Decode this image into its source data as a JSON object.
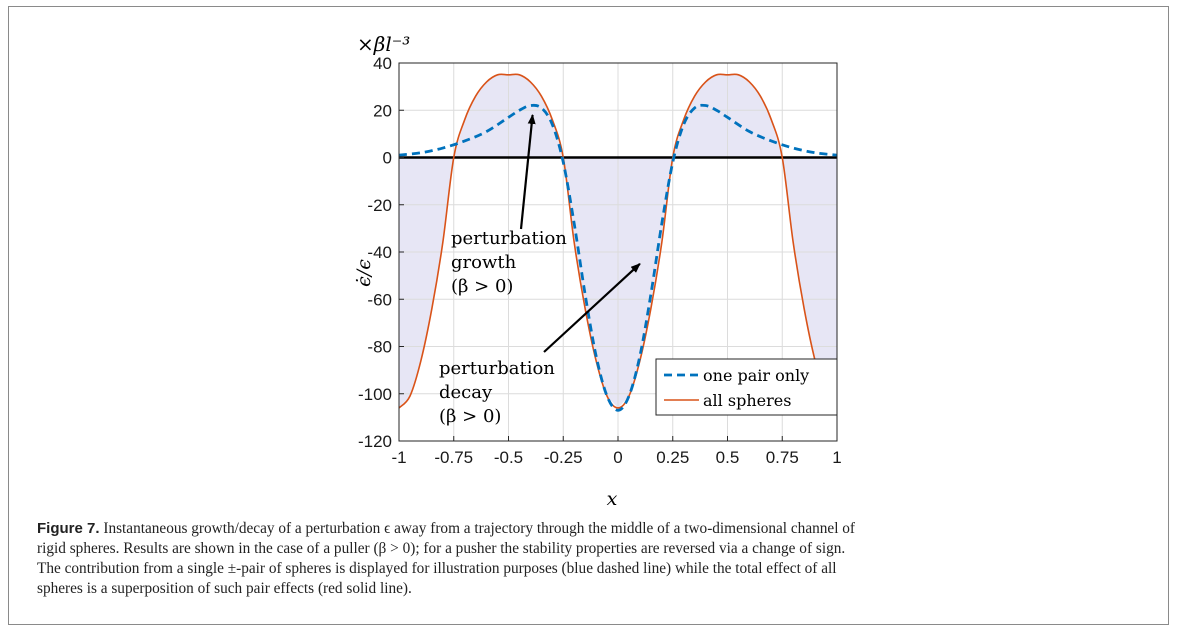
{
  "figure": {
    "label": "Figure 7.",
    "caption_lines": [
      "Instantaneous growth/decay of a perturbation ϵ away from a trajectory through the middle of a two-dimensional channel of",
      "rigid spheres. Results are shown in the case of a puller (β > 0); for a pusher the stability properties are reversed via a change of sign.",
      "The contribution from a single ±-pair of spheres is displayed for illustration purposes (blue dashed line) while the total effect of all",
      "spheres is a superposition of such pair effects (red solid line)."
    ]
  },
  "chart_data": {
    "type": "line",
    "xlabel": "x",
    "ylabel": "ϵ̇/ϵ",
    "y_multiplier": "×βl⁻³",
    "xlim": [
      -1,
      1
    ],
    "ylim": [
      -120,
      40
    ],
    "x_ticks": [
      -1,
      -0.75,
      -0.5,
      -0.25,
      0,
      0.25,
      0.5,
      0.75,
      1
    ],
    "x_tick_labels": [
      "-1",
      "-0.75",
      "-0.5",
      "-0.25",
      "0",
      "0.25",
      "0.5",
      "0.75",
      "1"
    ],
    "y_ticks": [
      40,
      20,
      0,
      -20,
      -40,
      -60,
      -80,
      -100,
      -120
    ],
    "y_tick_labels": [
      "40",
      "20",
      "0",
      "-20",
      "-40",
      "-60",
      "-80",
      "-100",
      "-120"
    ],
    "grid": true,
    "legend_position": "bottom-right",
    "series": [
      {
        "name": "one pair only",
        "style": "dashed",
        "color": "#0072BD",
        "x": [
          -1,
          -0.9,
          -0.8,
          -0.7,
          -0.6,
          -0.5,
          -0.45,
          -0.4,
          -0.35,
          -0.3,
          -0.25,
          -0.2,
          -0.15,
          -0.1,
          -0.05,
          0,
          0.05,
          0.1,
          0.15,
          0.2,
          0.25,
          0.3,
          0.35,
          0.4,
          0.45,
          0.5,
          0.6,
          0.7,
          0.8,
          0.9,
          1
        ],
        "y": [
          1,
          2,
          4,
          7,
          11,
          17,
          20,
          22,
          21,
          14,
          -2,
          -28,
          -58,
          -84,
          -101,
          -107,
          -101,
          -84,
          -58,
          -28,
          -2,
          14,
          21,
          22,
          20,
          17,
          11,
          7,
          4,
          2,
          1
        ]
      },
      {
        "name": "all spheres",
        "style": "solid",
        "color": "#D95319",
        "x": [
          -1,
          -0.95,
          -0.9,
          -0.85,
          -0.8,
          -0.75,
          -0.7,
          -0.65,
          -0.6,
          -0.55,
          -0.5,
          -0.45,
          -0.4,
          -0.35,
          -0.3,
          -0.25,
          -0.2,
          -0.15,
          -0.1,
          -0.05,
          0,
          0.05,
          0.1,
          0.15,
          0.2,
          0.25,
          0.3,
          0.35,
          0.4,
          0.45,
          0.5,
          0.55,
          0.6,
          0.65,
          0.7,
          0.75,
          0.8,
          0.85,
          0.9,
          0.95,
          1
        ],
        "y": [
          -106,
          -101,
          -86,
          -64,
          -36,
          0,
          16,
          26,
          32,
          35,
          35,
          35,
          32,
          26,
          16,
          0,
          -36,
          -64,
          -86,
          -101,
          -106,
          -101,
          -86,
          -64,
          -36,
          0,
          16,
          26,
          32,
          35,
          35,
          35,
          32,
          26,
          16,
          0,
          -36,
          -64,
          -86,
          -101,
          -106
        ]
      }
    ],
    "fill": {
      "between": "all spheres",
      "baseline": 0,
      "color": "#e7e6f5"
    },
    "annotations": [
      {
        "text_lines": [
          "perturbation",
          "growth",
          "(β > 0)"
        ],
        "arrow_to": [
          -0.39,
          18
        ]
      },
      {
        "text_lines": [
          "perturbation",
          "decay",
          "(β > 0)"
        ],
        "arrow_to": [
          0.1,
          -45
        ]
      }
    ]
  }
}
